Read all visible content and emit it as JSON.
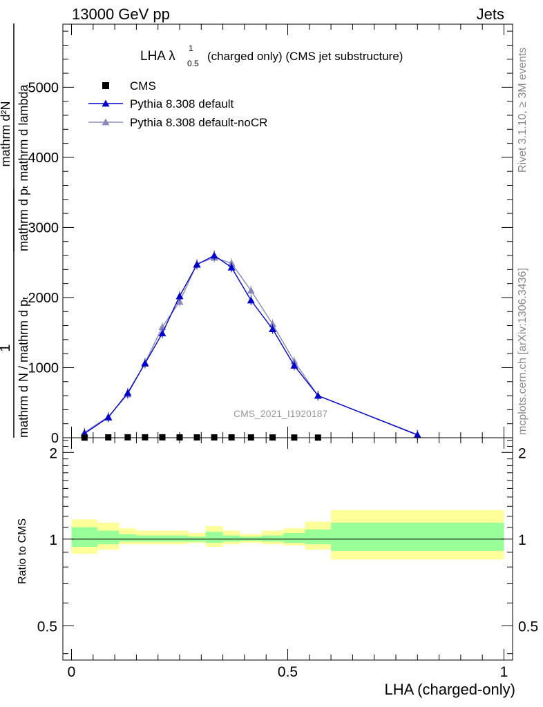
{
  "header": {
    "left": "13000 GeV pp",
    "right": "Jets"
  },
  "side_labels": {
    "rivet": "Rivet 3.1.10, ≥ 3M events",
    "mcplots": "mcplots.cern.ch [arXiv:1306.3436]"
  },
  "chart_data": [
    {
      "type": "scatter",
      "title_main": "LHA λ",
      "title_sup": "1",
      "title_sub": "0.5",
      "title_rest": "(charged only) (CMS jet substructure)",
      "watermark": "CMS_2021_I1920187",
      "ylabel": {
        "numerator": "mathrm d²N",
        "denominator": "mathrm d pₜ mathrm d lambda",
        "prefix_num": "1",
        "prefix_den": "mathrm d N / mathrm d pₜ"
      },
      "xlim": [
        -0.02,
        1.02
      ],
      "ylim": [
        0,
        5900
      ],
      "y_ticks": [
        0,
        1000,
        2000,
        3000,
        4000,
        5000
      ],
      "y_tick_labels": [
        "0",
        "1000",
        "2000",
        "3000",
        "4000",
        "5000"
      ],
      "grid": false,
      "legend_position": "top-left",
      "legend": [
        "CMS",
        "Pythia 8.308 default",
        "Pythia 8.308 default-noCR"
      ],
      "series": [
        {
          "name": "CMS",
          "color": "#000000",
          "marker": "square",
          "x": [
            0.03,
            0.085,
            0.13,
            0.17,
            0.21,
            0.25,
            0.29,
            0.33,
            0.37,
            0.415,
            0.465,
            0.515,
            0.57
          ],
          "values": [
            2,
            5,
            6,
            6,
            6,
            5,
            5,
            5,
            5,
            4,
            4,
            3,
            2
          ]
        },
        {
          "name": "Pythia 8.308 default",
          "color": "#0000cc",
          "marker": "triangle",
          "x": [
            0.03,
            0.085,
            0.13,
            0.17,
            0.21,
            0.25,
            0.29,
            0.33,
            0.37,
            0.415,
            0.465,
            0.515,
            0.57,
            0.8
          ],
          "values": [
            60,
            290,
            640,
            1060,
            1490,
            2020,
            2470,
            2600,
            2430,
            1960,
            1550,
            1030,
            600,
            40
          ]
        },
        {
          "name": "Pythia 8.308 default-noCR",
          "color": "#8888bb",
          "marker": "triangle",
          "x": [
            0.03,
            0.085,
            0.13,
            0.17,
            0.21,
            0.25,
            0.29,
            0.33,
            0.37,
            0.415,
            0.465,
            0.515,
            0.57,
            0.8
          ],
          "values": [
            75,
            300,
            620,
            1070,
            1580,
            1940,
            2480,
            2570,
            2490,
            2100,
            1620,
            1090,
            600,
            45
          ]
        }
      ]
    },
    {
      "type": "area",
      "ylabel": "Ratio to CMS",
      "xlabel": "LHA (charged-only)",
      "xlim": [
        -0.02,
        1.02
      ],
      "ylim": [
        0.38,
        2.25
      ],
      "x_ticks": [
        0,
        0.5,
        1
      ],
      "x_tick_labels": [
        "0",
        "0.5",
        "1"
      ],
      "y_ticks": [
        0.5,
        1,
        2
      ],
      "y_tick_labels": [
        "0.5",
        "1",
        "2"
      ],
      "reference_line": 1,
      "bins": [
        0,
        0.06,
        0.11,
        0.15,
        0.19,
        0.23,
        0.27,
        0.31,
        0.35,
        0.39,
        0.44,
        0.49,
        0.54,
        0.6,
        1.0
      ],
      "yellow_band": [
        [
          0.89,
          1.17
        ],
        [
          0.92,
          1.14
        ],
        [
          0.96,
          1.09
        ],
        [
          0.96,
          1.07
        ],
        [
          0.96,
          1.07
        ],
        [
          0.96,
          1.07
        ],
        [
          0.97,
          1.05
        ],
        [
          0.94,
          1.11
        ],
        [
          0.96,
          1.07
        ],
        [
          0.97,
          1.04
        ],
        [
          0.96,
          1.07
        ],
        [
          0.95,
          1.09
        ],
        [
          0.92,
          1.15
        ],
        [
          0.85,
          1.26
        ]
      ],
      "green_band": [
        [
          0.94,
          1.1
        ],
        [
          0.96,
          1.07
        ],
        [
          0.98,
          1.04
        ],
        [
          0.98,
          1.03
        ],
        [
          0.98,
          1.03
        ],
        [
          0.98,
          1.03
        ],
        [
          0.98,
          1.02
        ],
        [
          0.97,
          1.06
        ],
        [
          0.98,
          1.03
        ],
        [
          0.985,
          1.02
        ],
        [
          0.98,
          1.03
        ],
        [
          0.97,
          1.05
        ],
        [
          0.96,
          1.08
        ],
        [
          0.91,
          1.14
        ]
      ],
      "colors": {
        "yellow": "#ffff99",
        "green": "#99ff99"
      }
    }
  ]
}
